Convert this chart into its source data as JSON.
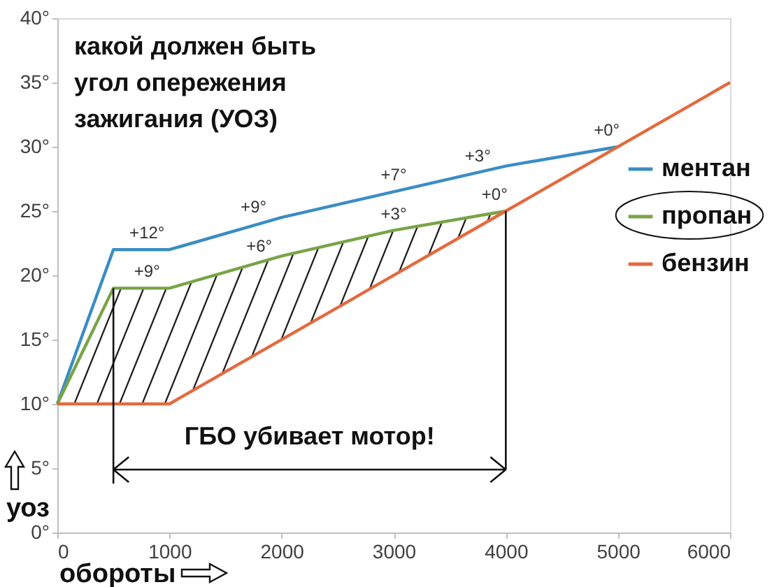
{
  "chart_data": {
    "type": "line",
    "title": "какой должен быть угол опережения зажигания (УОЗ)",
    "xlabel": "обороты",
    "ylabel": "уоз",
    "legend": "right",
    "xlim": [
      0,
      6000
    ],
    "xticks": [
      0,
      1000,
      2000,
      3000,
      4000,
      5000,
      6000
    ],
    "ylim": [
      0,
      40
    ],
    "yticks": [
      {
        "value": 0,
        "label": "0°"
      },
      {
        "value": 5,
        "label": "5°"
      },
      {
        "value": 10,
        "label": "10°"
      },
      {
        "value": 15,
        "label": "15°"
      },
      {
        "value": 20,
        "label": "20°"
      },
      {
        "value": 25,
        "label": "25°"
      },
      {
        "value": 30,
        "label": "30°"
      },
      {
        "value": 35,
        "label": "35°"
      },
      {
        "value": 40,
        "label": "40°"
      }
    ],
    "series": [
      {
        "name": "ментан",
        "color": "#3a8dc4",
        "x": [
          0,
          500,
          1000,
          2000,
          4000,
          5000
        ],
        "values": [
          10,
          22,
          22,
          24.5,
          28.5,
          30
        ]
      },
      {
        "name": "пропан",
        "color": "#78a446",
        "x": [
          0,
          500,
          1000,
          2000,
          3000,
          4000
        ],
        "values": [
          10,
          19,
          19,
          21.5,
          23.5,
          25
        ],
        "lower": [
          10,
          10,
          10,
          15,
          20,
          25
        ],
        "upper": [
          10,
          19,
          19,
          21.5,
          23.5,
          25
        ]
      },
      {
        "name": "бензин",
        "color": "#e36a3f",
        "x": [
          0,
          1000,
          4000,
          6000
        ],
        "values": [
          10,
          10,
          25,
          35
        ]
      }
    ],
    "annotations": [
      {
        "text": "+12°",
        "x": 800,
        "y": 22
      },
      {
        "text": "+9°",
        "x": 1750,
        "y": 24
      },
      {
        "text": "+7°",
        "x": 3000,
        "y": 26.5
      },
      {
        "text": "+3°",
        "x": 3750,
        "y": 28
      },
      {
        "text": "+0°",
        "x": 4900,
        "y": 30
      },
      {
        "text": "+9°",
        "x": 800,
        "y": 19
      },
      {
        "text": "+6°",
        "x": 1800,
        "y": 21
      },
      {
        "text": "+3°",
        "x": 3000,
        "y": 23.5
      },
      {
        "text": "+0°",
        "x": 3900,
        "y": 25
      },
      "ГБО убивает мотор!"
    ]
  }
}
